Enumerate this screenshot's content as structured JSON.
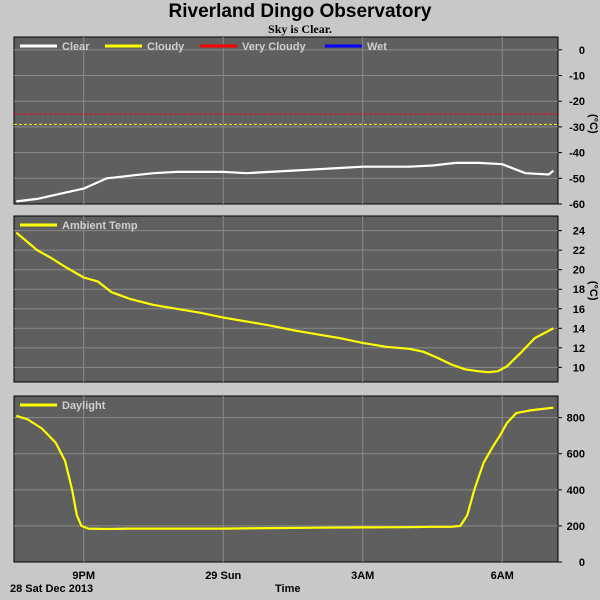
{
  "header": {
    "title": "Riverland Dingo Observatory",
    "subtitle": "Sky is Clear."
  },
  "footer": {
    "date_label": "28 Sat Dec 2013",
    "axis_title": "Time"
  },
  "colors": {
    "panel_bg": "#5f5f5f",
    "page_bg": "#c8c8c8",
    "grid": "#8a8a8a",
    "clear": "#ffffff",
    "cloudy": "#ffff00",
    "very_cloudy": "#ff0000",
    "wet": "#0000ff"
  },
  "chart_data": [
    {
      "type": "line",
      "legend": [
        "Clear",
        "Cloudy",
        "Very Cloudy",
        "Wet"
      ],
      "ylabel": "(°C)",
      "ylim": [
        -60,
        5
      ],
      "yticks": [
        "0",
        "-10",
        "-20",
        "-30",
        "-40",
        "-50",
        "-60"
      ],
      "yticks_values": [
        0,
        -10,
        -20,
        -30,
        -40,
        -50,
        -60
      ],
      "xlim": [
        19.5,
        31.2
      ],
      "xticks": [
        "9PM",
        "29 Sun",
        "3AM",
        "6AM"
      ],
      "xticks_values": [
        21,
        24,
        27,
        30
      ],
      "thresholds": [
        {
          "name": "Very Cloudy",
          "value": -25,
          "color": "#ff0000"
        },
        {
          "name": "Cloudy",
          "value": -29,
          "color": "#ffff00"
        }
      ],
      "series": [
        {
          "name": "Clear",
          "color": "#ffffff",
          "x": [
            19.55,
            20.0,
            20.5,
            21.0,
            21.5,
            22.0,
            22.5,
            23.0,
            23.5,
            24.0,
            24.5,
            25.0,
            25.5,
            26.0,
            26.5,
            27.0,
            27.5,
            28.0,
            28.5,
            29.0,
            29.5,
            30.0,
            30.5,
            31.0,
            31.1
          ],
          "y": [
            -59,
            -58,
            -56,
            -54,
            -50,
            -49,
            -48,
            -47.5,
            -47.5,
            -47.5,
            -48,
            -47.5,
            -47,
            -46.5,
            -46,
            -45.5,
            -45.5,
            -45.5,
            -45,
            -44,
            -44,
            -44.5,
            -48,
            -48.5,
            -47
          ]
        }
      ]
    },
    {
      "type": "line",
      "legend": [
        "Ambient Temp"
      ],
      "ylabel": "(°C)",
      "ylim": [
        8.5,
        25.5
      ],
      "yticks": [
        "24",
        "22",
        "20",
        "18",
        "16",
        "14",
        "12",
        "10"
      ],
      "yticks_values": [
        24,
        22,
        20,
        18,
        16,
        14,
        12,
        10
      ],
      "xlim": [
        19.5,
        31.2
      ],
      "xticks": [
        "9PM",
        "29 Sun",
        "3AM",
        "6AM"
      ],
      "xticks_values": [
        21,
        24,
        27,
        30
      ],
      "series": [
        {
          "name": "Ambient Temp",
          "color": "#ffff00",
          "x": [
            19.55,
            19.8,
            20.0,
            20.3,
            20.6,
            21.0,
            21.3,
            21.6,
            22.0,
            22.5,
            23.0,
            23.5,
            24.0,
            24.5,
            25.0,
            25.5,
            26.0,
            26.5,
            27.0,
            27.5,
            28.0,
            28.3,
            28.6,
            28.9,
            29.2,
            29.5,
            29.7,
            29.9,
            30.1,
            30.4,
            30.7,
            31.1
          ],
          "y": [
            23.8,
            22.8,
            22.0,
            21.2,
            20.3,
            19.2,
            18.8,
            17.7,
            17.0,
            16.4,
            16.0,
            15.6,
            15.1,
            14.7,
            14.3,
            13.8,
            13.4,
            13.0,
            12.5,
            12.1,
            11.9,
            11.6,
            11.0,
            10.3,
            9.8,
            9.6,
            9.5,
            9.6,
            10.1,
            11.5,
            13.0,
            14.0
          ]
        }
      ]
    },
    {
      "type": "line",
      "legend": [
        "Daylight"
      ],
      "ylabel": "",
      "ylim": [
        0,
        920
      ],
      "yticks": [
        "800",
        "600",
        "400",
        "200",
        "0"
      ],
      "yticks_values": [
        800,
        600,
        400,
        200,
        0
      ],
      "xlim": [
        19.5,
        31.2
      ],
      "xticks": [
        "9PM",
        "29 Sun",
        "3AM",
        "6AM"
      ],
      "xticks_values": [
        21,
        24,
        27,
        30
      ],
      "series": [
        {
          "name": "Daylight",
          "color": "#ffff00",
          "x": [
            19.55,
            19.8,
            20.1,
            20.4,
            20.6,
            20.75,
            20.85,
            20.95,
            21.1,
            21.5,
            22.0,
            23.0,
            24.0,
            25.0,
            26.0,
            27.0,
            28.0,
            28.5,
            28.9,
            29.1,
            29.25,
            29.4,
            29.6,
            29.8,
            29.95,
            30.1,
            30.3,
            30.6,
            31.1
          ],
          "y": [
            810,
            790,
            740,
            660,
            560,
            400,
            260,
            200,
            185,
            183,
            185,
            185,
            185,
            188,
            190,
            192,
            193,
            195,
            195,
            200,
            260,
            400,
            550,
            640,
            700,
            770,
            825,
            840,
            855
          ]
        }
      ]
    }
  ]
}
